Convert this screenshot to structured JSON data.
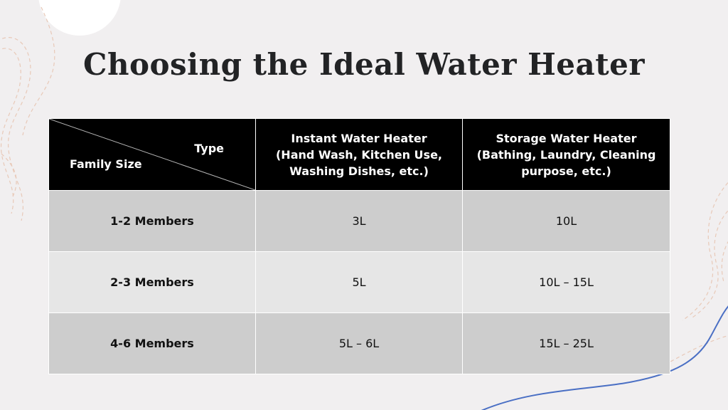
{
  "title": "Choosing the Ideal Water Heater",
  "table": {
    "corner": {
      "type_label": "Type",
      "family_label": "Family Size"
    },
    "columns": [
      {
        "lines": [
          "Instant Water Heater",
          "(Hand Wash, Kitchen Use,",
          "Washing Dishes, etc.)"
        ]
      },
      {
        "lines": [
          "Storage Water Heater",
          "(Bathing, Laundry, Cleaning",
          "purpose, etc.)"
        ]
      }
    ],
    "rows": [
      {
        "family": "1-2 Members",
        "instant": "3L",
        "storage": "10L"
      },
      {
        "family": "2-3 Members",
        "instant": "5L",
        "storage": "10L – 15L"
      },
      {
        "family": "4-6 Members",
        "instant": "5L – 6L",
        "storage": "15L – 25L"
      }
    ]
  },
  "colors": {
    "background": "#f1eff0",
    "header_fill": "#000000",
    "row_dark": "#cdcdcd",
    "row_light": "#e6e6e6",
    "accent_line": "#4a6fc4",
    "contour_line": "#e8c9b8"
  }
}
